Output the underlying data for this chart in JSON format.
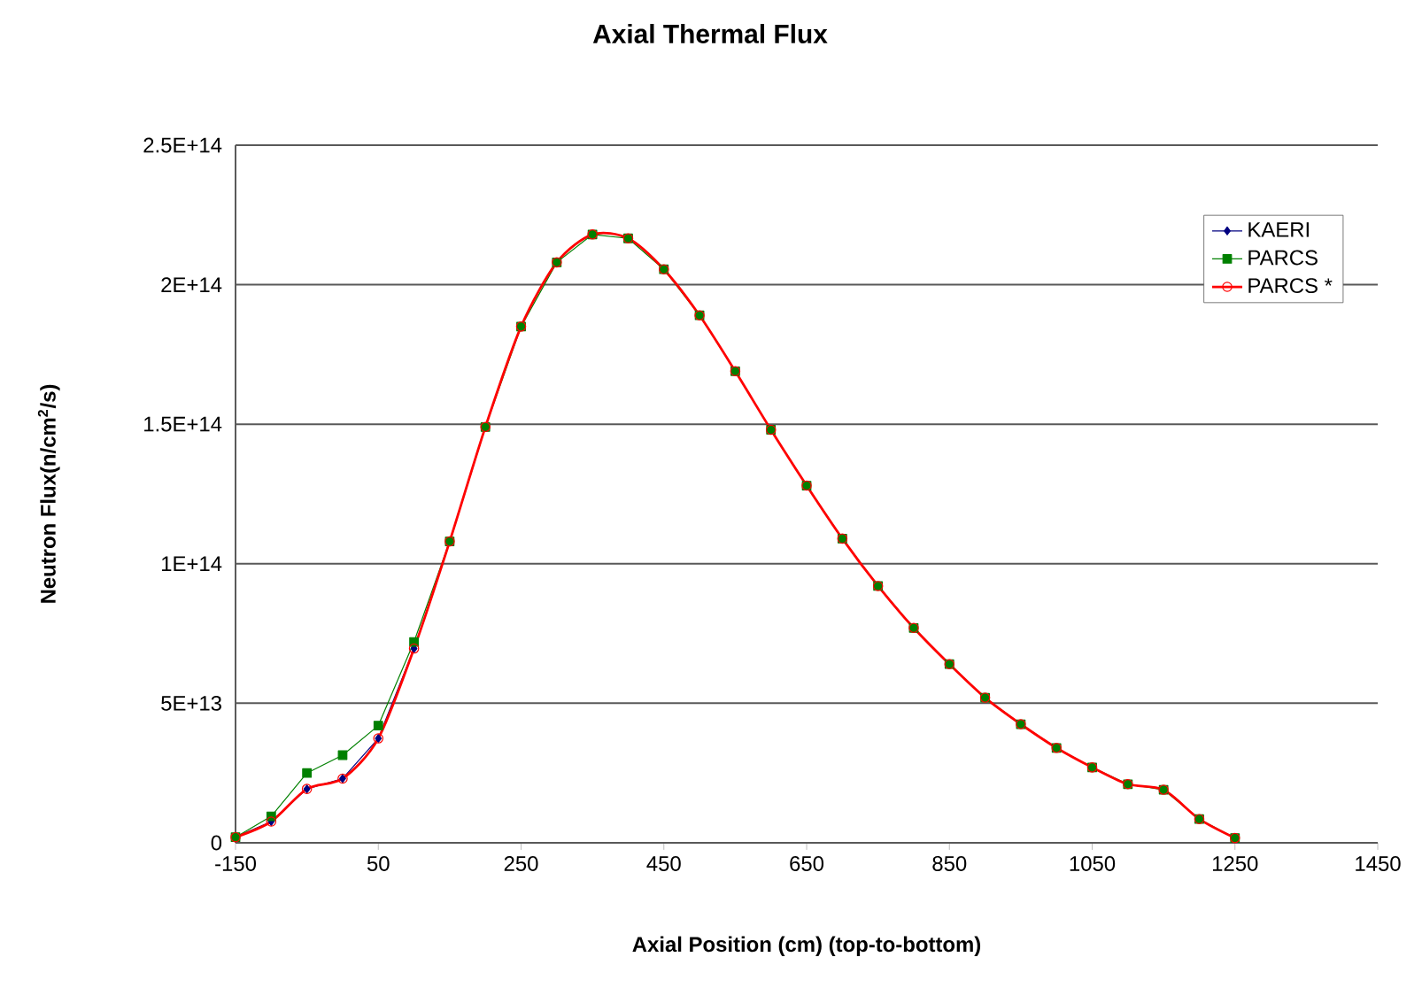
{
  "chart_data": {
    "type": "line",
    "title": "Axial Thermal Flux",
    "xlabel": "Axial Position (cm) (top-to-bottom)",
    "ylabel": "Neutron Flux(n/cm$^{2}$/s)",
    "x": [
      -150,
      -100,
      -50,
      0,
      50,
      100,
      150,
      200,
      250,
      300,
      350,
      400,
      450,
      500,
      550,
      600,
      650,
      700,
      750,
      800,
      850,
      900,
      950,
      1000,
      1050,
      1100,
      1150,
      1200,
      1250
    ],
    "series": [
      {
        "name": "KAERI",
        "color": "#000080",
        "marker": "diamond",
        "values": [
          2000000000000.0,
          7600000000000.0,
          19300000000000.0,
          23000000000000.0,
          37400000000000.0,
          69600000000000.0,
          null,
          null,
          null,
          null,
          null,
          null,
          null,
          null,
          null,
          null,
          null,
          null,
          null,
          null,
          null,
          null,
          null,
          null,
          null,
          null,
          null,
          null,
          null
        ]
      },
      {
        "name": "PARCS",
        "color": "#008000",
        "marker": "square",
        "values": [
          2000000000000.0,
          9500000000000.0,
          25000000000000.0,
          31400000000000.0,
          42000000000000.0,
          72000000000000.0,
          108000000000000.0,
          149000000000000.0,
          185000000000000.0,
          208000000000000.0,
          218000000000000.0,
          216600000000000.0,
          205500000000000.0,
          189000000000000.0,
          169000000000000.0,
          148000000000000.0,
          128000000000000.0,
          109000000000000.0,
          92000000000000.0,
          77000000000000.0,
          64000000000000.0,
          52000000000000.0,
          42500000000000.0,
          34000000000000.0,
          27000000000000.0,
          21000000000000.0,
          19000000000000.0,
          8500000000000.0,
          1700000000000.0
        ]
      },
      {
        "name": "PARCS *",
        "color": "#ff0000",
        "marker": "circle",
        "values": [
          2000000000000.0,
          7600000000000.0,
          19300000000000.0,
          23000000000000.0,
          37400000000000.0,
          69600000000000.0,
          108000000000000.0,
          149000000000000.0,
          185000000000000.0,
          208000000000000.0,
          218000000000000.0,
          216600000000000.0,
          205500000000000.0,
          189000000000000.0,
          169000000000000.0,
          148000000000000.0,
          128000000000000.0,
          109000000000000.0,
          92000000000000.0,
          77000000000000.0,
          64000000000000.0,
          52000000000000.0,
          42500000000000.0,
          34000000000000.0,
          27000000000000.0,
          21000000000000.0,
          19000000000000.0,
          8500000000000.0,
          1700000000000.0
        ]
      }
    ],
    "xlim": [
      -150,
      1450
    ],
    "xticks": [
      -150,
      50,
      250,
      450,
      650,
      850,
      1050,
      1250,
      1450
    ],
    "ylim": [
      0,
      250000000000000.0
    ],
    "yticks": [
      0,
      {
        "value": 50000000000000.0,
        "label": "5E+13"
      },
      {
        "value": 100000000000000.0,
        "label": "1E+14"
      },
      {
        "value": 150000000000000.0,
        "label": "1.5E+14"
      },
      {
        "value": 200000000000000.0,
        "label": "2E+14"
      },
      {
        "value": 250000000000000.0,
        "label": "2.5E+14"
      }
    ],
    "grid": "y",
    "legend": "top right"
  }
}
